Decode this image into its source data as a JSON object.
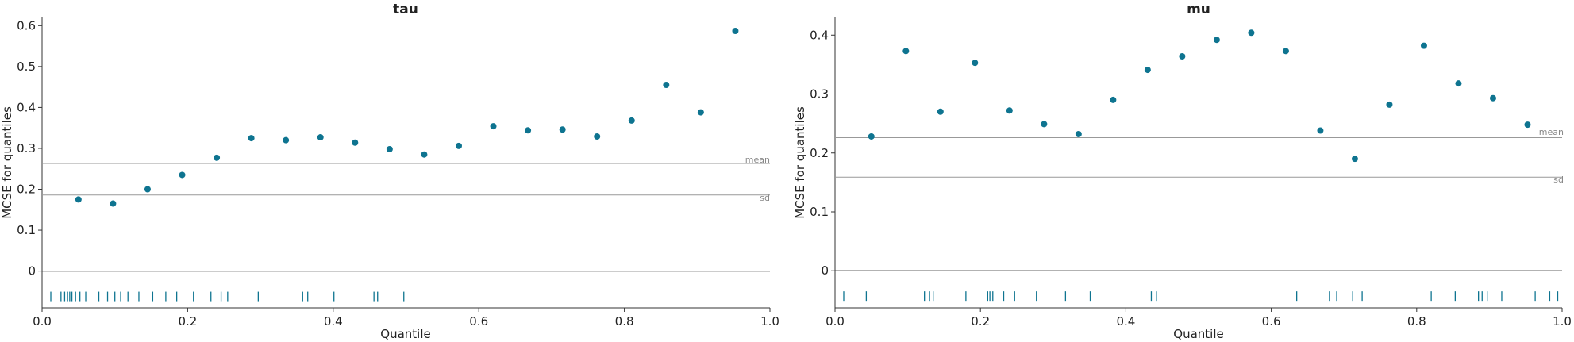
{
  "colors": {
    "point": "#0e7490",
    "axis": "#333333",
    "refline": "#999999",
    "zero": "#333333",
    "rug": "#0e7490"
  },
  "chart_data": [
    {
      "type": "scatter",
      "title": "tau",
      "xlabel": "Quantile",
      "ylabel": "MCSE for quantiles",
      "xlim": [
        0,
        1
      ],
      "ylim": [
        -0.09,
        0.62
      ],
      "xticks": [
        "0.0",
        "0.2",
        "0.4",
        "0.6",
        "0.8",
        "1.0"
      ],
      "yticks": [
        "0",
        "0.1",
        "0.2",
        "0.3",
        "0.4",
        "0.5",
        "0.6"
      ],
      "x": [
        0.05,
        0.0975,
        0.145,
        0.1925,
        0.24,
        0.2875,
        0.335,
        0.3825,
        0.43,
        0.4775,
        0.525,
        0.5725,
        0.62,
        0.6675,
        0.715,
        0.7625,
        0.81,
        0.8575,
        0.905,
        0.9525
      ],
      "y": [
        0.175,
        0.165,
        0.2,
        0.235,
        0.277,
        0.325,
        0.32,
        0.327,
        0.314,
        0.298,
        0.285,
        0.306,
        0.354,
        0.344,
        0.346,
        0.329,
        0.368,
        0.455,
        0.388,
        0.587
      ],
      "mean_label": "mean",
      "mean_value": 0.263,
      "sd_label": "sd",
      "sd_value": 0.186,
      "rug_y": -0.062,
      "rug": [
        0.012,
        0.026,
        0.031,
        0.035,
        0.038,
        0.041,
        0.046,
        0.052,
        0.06,
        0.078,
        0.09,
        0.1,
        0.108,
        0.118,
        0.133,
        0.152,
        0.17,
        0.185,
        0.208,
        0.232,
        0.246,
        0.255,
        0.297,
        0.358,
        0.365,
        0.401,
        0.456,
        0.461,
        0.497
      ]
    },
    {
      "type": "scatter",
      "title": "mu",
      "xlabel": "Quantile",
      "ylabel": "MCSE for quantiles",
      "xlim": [
        0,
        1
      ],
      "ylim": [
        -0.063,
        0.43
      ],
      "xticks": [
        "0.0",
        "0.2",
        "0.4",
        "0.6",
        "0.8",
        "1.0"
      ],
      "yticks": [
        "0",
        "0.1",
        "0.2",
        "0.3",
        "0.4"
      ],
      "x": [
        0.05,
        0.0975,
        0.145,
        0.1925,
        0.24,
        0.2875,
        0.335,
        0.3825,
        0.43,
        0.4775,
        0.525,
        0.5725,
        0.62,
        0.6675,
        0.715,
        0.7625,
        0.81,
        0.8575,
        0.905,
        0.9525
      ],
      "y": [
        0.228,
        0.373,
        0.27,
        0.353,
        0.272,
        0.249,
        0.232,
        0.29,
        0.341,
        0.364,
        0.392,
        0.404,
        0.373,
        0.238,
        0.19,
        0.282,
        0.382,
        0.318,
        0.293,
        0.248
      ],
      "mean_label": "mean",
      "mean_value": 0.226,
      "sd_label": "sd",
      "sd_value": 0.159,
      "rug_y": -0.043,
      "rug": [
        0.012,
        0.043,
        0.123,
        0.13,
        0.135,
        0.18,
        0.21,
        0.213,
        0.217,
        0.232,
        0.247,
        0.277,
        0.317,
        0.351,
        0.435,
        0.442,
        0.635,
        0.68,
        0.69,
        0.712,
        0.725,
        0.82,
        0.853,
        0.885,
        0.89,
        0.897,
        0.917,
        0.963,
        0.983,
        0.994
      ]
    }
  ]
}
